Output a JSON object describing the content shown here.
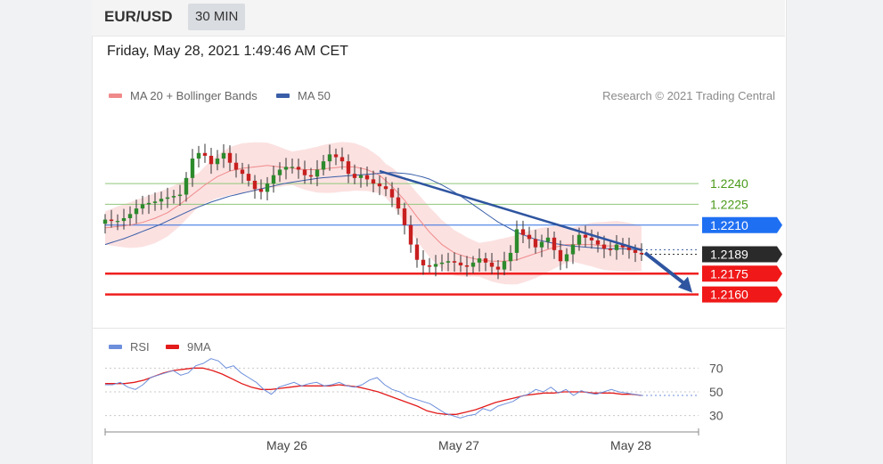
{
  "header": {
    "pair": "EUR/USD",
    "timeframe": "30 MIN"
  },
  "datetime": "Friday, May 28, 2021 1:49:46 AM CET",
  "legend": {
    "ma20": {
      "label": "MA 20 + Bollinger Bands",
      "color": "#f08a8a"
    },
    "ma50": {
      "label": "MA 50",
      "color": "#3a5fa8"
    },
    "rsi": {
      "label": "RSI",
      "color": "#6d8fdc"
    },
    "ma9": {
      "label": "9MA",
      "color": "#e31b1b"
    }
  },
  "credit": "Research © 2021 Trading Central",
  "chart_data": [
    {
      "type": "candlestick",
      "ylim": [
        1.2154,
        1.2276
      ],
      "levels": [
        {
          "label": "1.2240",
          "value": 1.224,
          "kind": "resistance-green"
        },
        {
          "label": "1.2225",
          "value": 1.2225,
          "kind": "resistance-green"
        },
        {
          "label": "1.2210",
          "value": 1.221,
          "kind": "pivot-blue"
        },
        {
          "label": "1.2189",
          "value": 1.2189,
          "kind": "last-price"
        },
        {
          "label": "1.2175",
          "value": 1.2175,
          "kind": "support-red"
        },
        {
          "label": "1.2160",
          "value": 1.216,
          "kind": "support-red"
        }
      ],
      "close_series_approx": [
        1.2214,
        1.2213,
        1.2213,
        1.2215,
        1.2218,
        1.2222,
        1.2225,
        1.2226,
        1.2227,
        1.2229,
        1.223,
        1.2231,
        1.2232,
        1.2244,
        1.2258,
        1.2262,
        1.226,
        1.2254,
        1.2258,
        1.2262,
        1.2255,
        1.225,
        1.2247,
        1.2242,
        1.2236,
        1.2234,
        1.224,
        1.2246,
        1.225,
        1.2252,
        1.2252,
        1.225,
        1.2246,
        1.2245,
        1.225,
        1.2256,
        1.2261,
        1.2259,
        1.2256,
        1.2247,
        1.2244,
        1.2246,
        1.2243,
        1.224,
        1.2238,
        1.2236,
        1.223,
        1.2222,
        1.221,
        1.2196,
        1.2185,
        1.2181,
        1.218,
        1.2182,
        1.2183,
        1.2184,
        1.2183,
        1.2181,
        1.218,
        1.2183,
        1.2186,
        1.2183,
        1.218,
        1.2178,
        1.2184,
        1.219,
        1.2207,
        1.2203,
        1.22,
        1.2194,
        1.2198,
        1.2201,
        1.2192,
        1.2184,
        1.2189,
        1.2196,
        1.2203,
        1.2201,
        1.2199,
        1.2196,
        1.2193,
        1.2192,
        1.2196,
        1.2194,
        1.2192,
        1.219,
        1.2189
      ],
      "ma20_approx": [
        1.2208,
        1.2209,
        1.221,
        1.2212,
        1.2215,
        1.2219,
        1.2225,
        1.2232,
        1.2239,
        1.2245,
        1.2249,
        1.2251,
        1.2252,
        1.2253,
        1.2252,
        1.2251,
        1.225,
        1.225,
        1.2251,
        1.2252,
        1.2252,
        1.225,
        1.2246,
        1.2238,
        1.2228,
        1.2216,
        1.2205,
        1.2196,
        1.219,
        1.2187,
        1.2185,
        1.2184,
        1.2184,
        1.2185,
        1.2188,
        1.2191,
        1.2194,
        1.2196,
        1.2196,
        1.2196,
        1.2195,
        1.2195,
        1.2194,
        1.2193
      ],
      "ma50_approx": [
        1.2196,
        1.22,
        1.2205,
        1.221,
        1.2216,
        1.2222,
        1.2227,
        1.2231,
        1.2234,
        1.2237,
        1.224,
        1.2242,
        1.2244,
        1.2245,
        1.2246,
        1.2247,
        1.2248,
        1.2247,
        1.2244,
        1.2238,
        1.223,
        1.2221,
        1.2212,
        1.2205,
        1.22,
        1.2197,
        1.2195,
        1.2194,
        1.2193,
        1.2193,
        1.2192
      ],
      "trendline": {
        "from_index": 44,
        "from_value": 1.2249,
        "to_index": 86,
        "to_value": 1.2192
      },
      "projection": {
        "to_value": 1.216
      }
    },
    {
      "type": "line",
      "name": "RSI",
      "ylim": [
        20,
        80
      ],
      "y_ticks": [
        "70",
        "50",
        "30"
      ],
      "tick_values": [
        70,
        50,
        30
      ],
      "rsi_approx": [
        56,
        56,
        58,
        54,
        52,
        56,
        62,
        64,
        66,
        68,
        64,
        66,
        72,
        74,
        78,
        76,
        70,
        72,
        66,
        62,
        58,
        52,
        48,
        54,
        56,
        58,
        55,
        57,
        58,
        55,
        56,
        58,
        55,
        54,
        56,
        60,
        62,
        56,
        52,
        50,
        46,
        44,
        42,
        40,
        36,
        32,
        30,
        28,
        30,
        31,
        36,
        34,
        38,
        40,
        42,
        46,
        48,
        52,
        50,
        54,
        49,
        52,
        47,
        51,
        49,
        48,
        50,
        52,
        50,
        49,
        48,
        47
      ],
      "ma9_approx": [
        57,
        57,
        57,
        58,
        60,
        63,
        66,
        68,
        69,
        70,
        70,
        68,
        65,
        61,
        57,
        54,
        52,
        52,
        53,
        54,
        55,
        55,
        55,
        55,
        56,
        55,
        54,
        52,
        50,
        47,
        44,
        41,
        38,
        34,
        32,
        31,
        31,
        33,
        35,
        38,
        41,
        43,
        45,
        47,
        48,
        49,
        49,
        50,
        50,
        50,
        49,
        49,
        49,
        48,
        48,
        47
      ]
    }
  ],
  "x_axis": {
    "labels": [
      "May 26",
      "May 27",
      "May 28"
    ]
  }
}
